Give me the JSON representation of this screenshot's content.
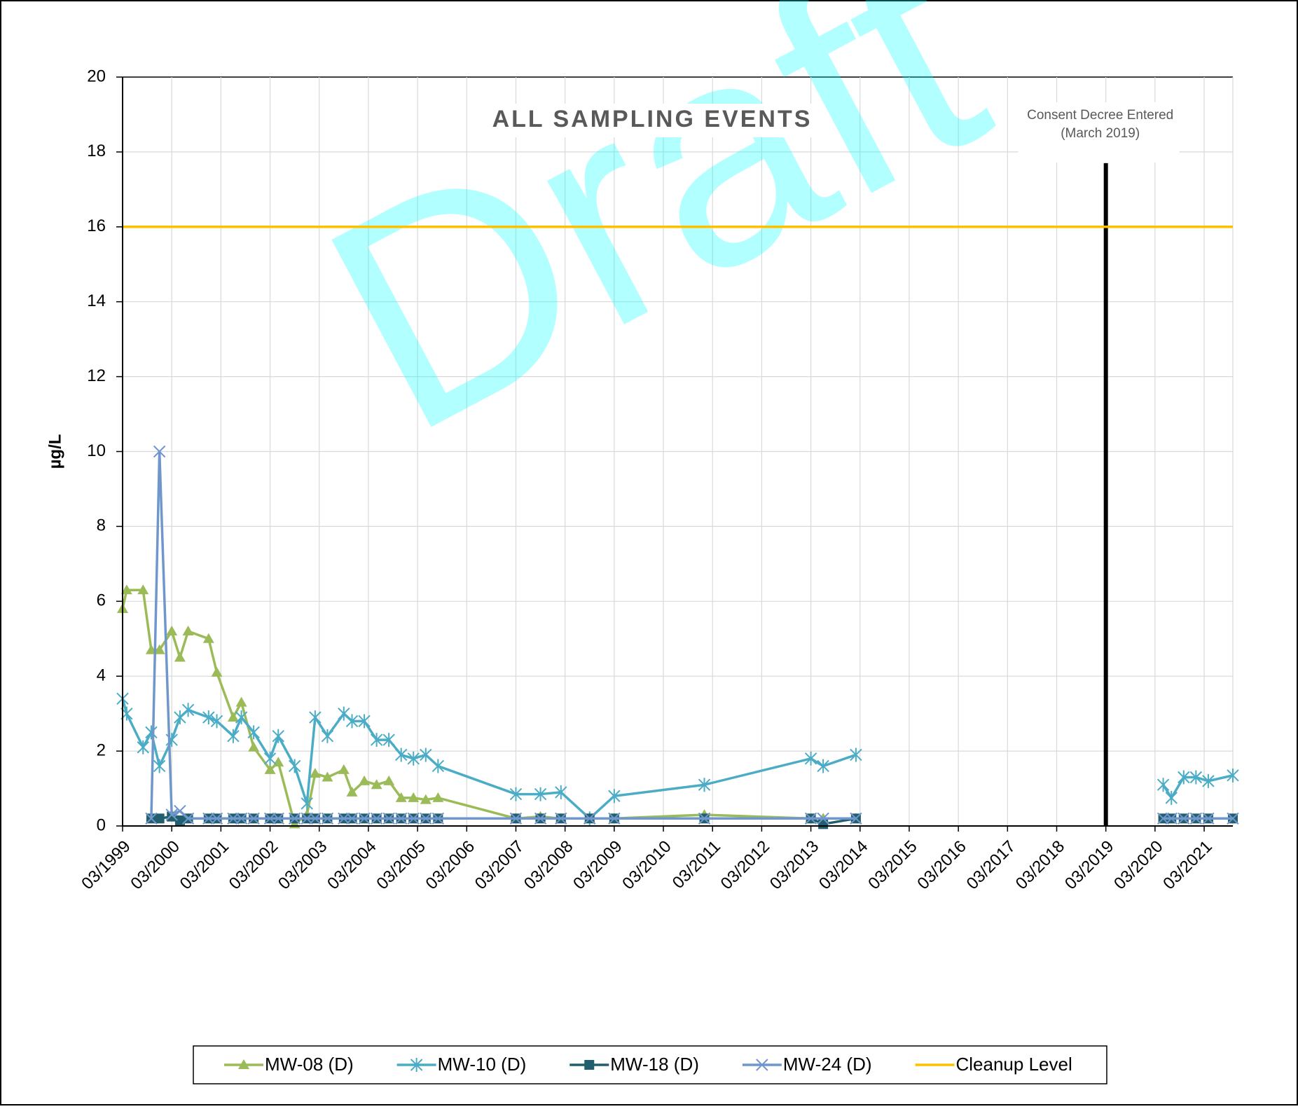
{
  "chart_data": {
    "type": "line",
    "title": "ALL SAMPLING EVENTS",
    "ylabel": "µg/L",
    "watermark": "Draft",
    "xlim": [
      "1999-03",
      "2021-10"
    ],
    "xticks": [
      {
        "value": "1999-03",
        "label": "03/1999"
      },
      {
        "value": "2000-03",
        "label": "03/2000"
      },
      {
        "value": "2001-03",
        "label": "03/2001"
      },
      {
        "value": "2002-03",
        "label": "03/2002"
      },
      {
        "value": "2003-03",
        "label": "03/2003"
      },
      {
        "value": "2004-03",
        "label": "03/2004"
      },
      {
        "value": "2005-03",
        "label": "03/2005"
      },
      {
        "value": "2006-03",
        "label": "03/2006"
      },
      {
        "value": "2007-03",
        "label": "03/2007"
      },
      {
        "value": "2008-03",
        "label": "03/2008"
      },
      {
        "value": "2009-03",
        "label": "03/2009"
      },
      {
        "value": "2010-03",
        "label": "03/2010"
      },
      {
        "value": "2011-03",
        "label": "03/2011"
      },
      {
        "value": "2012-03",
        "label": "03/2012"
      },
      {
        "value": "2013-03",
        "label": "03/2013"
      },
      {
        "value": "2014-03",
        "label": "03/2014"
      },
      {
        "value": "2015-03",
        "label": "03/2015"
      },
      {
        "value": "2016-03",
        "label": "03/2016"
      },
      {
        "value": "2017-03",
        "label": "03/2017"
      },
      {
        "value": "2018-03",
        "label": "03/2018"
      },
      {
        "value": "2019-03",
        "label": "03/2019"
      },
      {
        "value": "2020-03",
        "label": "03/2020"
      },
      {
        "value": "2021-03",
        "label": "03/2021"
      }
    ],
    "ylim": [
      0,
      20
    ],
    "yticks": [
      0,
      2,
      4,
      6,
      8,
      10,
      12,
      14,
      16,
      18,
      20
    ],
    "grid": true,
    "legend": "bottom",
    "annotation": {
      "x": "2019-03",
      "y": 17.7,
      "text": [
        "Consent Decree Entered",
        "(March 2019)"
      ]
    },
    "series": [
      {
        "name": "MW-08 (D)",
        "color": "#9bbb59",
        "marker": "triangle",
        "x": [
          "1999-03",
          "1999-04",
          "1999-08",
          "1999-10",
          "1999-12",
          "2000-03",
          "2000-05",
          "2000-07",
          "2000-12",
          "2001-02",
          "2001-06",
          "2001-08",
          "2001-11",
          "2002-03",
          "2002-05",
          "2002-09",
          "2002-12",
          "2003-02",
          "2003-05",
          "2003-09",
          "2003-11",
          "2004-02",
          "2004-05",
          "2004-08",
          "2004-11",
          "2005-02",
          "2005-05",
          "2005-08",
          "2007-03",
          "2007-09",
          "2008-02",
          "2008-09",
          "2009-03",
          "2011-01",
          "2013-03",
          "2013-06",
          "2014-02"
        ],
        "values": [
          5.8,
          6.3,
          6.3,
          4.7,
          4.7,
          5.2,
          4.5,
          5.2,
          5.0,
          4.1,
          2.9,
          3.3,
          2.1,
          1.5,
          1.7,
          0.05,
          0.3,
          1.4,
          1.3,
          1.5,
          0.9,
          1.2,
          1.1,
          1.2,
          0.75,
          0.75,
          0.7,
          0.75,
          0.2,
          0.25,
          0.2,
          0.2,
          0.2,
          0.3,
          0.2,
          0.2,
          0.2
        ]
      },
      {
        "name": "MW-10 (D)",
        "color": "#4bacc6",
        "marker": "star",
        "x": [
          "1999-03",
          "1999-04",
          "1999-08",
          "1999-10",
          "1999-12",
          "2000-03",
          "2000-05",
          "2000-07",
          "2000-12",
          "2001-02",
          "2001-06",
          "2001-08",
          "2001-11",
          "2002-03",
          "2002-05",
          "2002-09",
          "2002-12",
          "2003-02",
          "2003-05",
          "2003-09",
          "2003-11",
          "2004-02",
          "2004-05",
          "2004-08",
          "2004-11",
          "2005-02",
          "2005-05",
          "2005-08",
          "2007-03",
          "2007-09",
          "2008-02",
          "2008-09",
          "2009-03",
          "2011-01",
          "2013-03",
          "2013-06",
          "2014-02",
          null,
          "2020-05",
          "2020-07",
          "2020-10",
          "2021-01",
          "2021-04",
          "2021-10"
        ],
        "values": [
          3.4,
          3.0,
          2.1,
          2.5,
          1.6,
          2.3,
          2.9,
          3.1,
          2.9,
          2.8,
          2.4,
          2.9,
          2.5,
          1.8,
          2.4,
          1.6,
          0.6,
          2.9,
          2.4,
          3.0,
          2.8,
          2.8,
          2.3,
          2.3,
          1.9,
          1.8,
          1.9,
          1.6,
          0.85,
          0.85,
          0.9,
          0.2,
          0.8,
          1.1,
          1.8,
          1.6,
          1.9,
          null,
          1.1,
          0.75,
          1.3,
          1.3,
          1.2,
          1.35
        ]
      },
      {
        "name": "MW-18 (D)",
        "color": "#215f6e",
        "marker": "square",
        "x": [
          "1999-10",
          "1999-12",
          "2000-03",
          "2000-05",
          "2000-07",
          "2000-12",
          "2001-02",
          "2001-06",
          "2001-08",
          "2001-11",
          "2002-03",
          "2002-05",
          "2002-09",
          "2002-12",
          "2003-02",
          "2003-05",
          "2003-09",
          "2003-11",
          "2004-02",
          "2004-05",
          "2004-08",
          "2004-11",
          "2005-02",
          "2005-05",
          "2005-08",
          "2007-03",
          "2007-09",
          "2008-02",
          "2008-09",
          "2009-03",
          "2011-01",
          "2013-03",
          "2013-06",
          "2014-02",
          null,
          "2020-05",
          "2020-07",
          "2020-10",
          "2021-01",
          "2021-04",
          "2021-10"
        ],
        "values": [
          0.2,
          0.2,
          0.25,
          0.15,
          0.2,
          0.2,
          0.2,
          0.2,
          0.2,
          0.2,
          0.2,
          0.2,
          0.2,
          0.2,
          0.2,
          0.2,
          0.2,
          0.2,
          0.2,
          0.2,
          0.2,
          0.2,
          0.2,
          0.2,
          0.2,
          0.2,
          0.2,
          0.2,
          0.2,
          0.2,
          0.2,
          0.2,
          0.05,
          0.2,
          null,
          0.2,
          0.2,
          0.2,
          0.2,
          0.2,
          0.2
        ]
      },
      {
        "name": "MW-24 (D)",
        "color": "#6f97cc",
        "marker": "x",
        "x": [
          "1999-10",
          "1999-12",
          "2000-03",
          "2000-05",
          "2000-07",
          "2000-12",
          "2001-02",
          "2001-06",
          "2001-08",
          "2001-11",
          "2002-03",
          "2002-05",
          "2002-09",
          "2002-12",
          "2003-02",
          "2003-05",
          "2003-09",
          "2003-11",
          "2004-02",
          "2004-05",
          "2004-08",
          "2004-11",
          "2005-02",
          "2005-05",
          "2005-08",
          "2007-03",
          "2007-09",
          "2008-02",
          "2008-09",
          "2009-03",
          "2011-01",
          "2013-03",
          "2013-06",
          "2014-02",
          null,
          "2020-05",
          "2020-07",
          "2020-10",
          "2021-01",
          "2021-04",
          "2021-10"
        ],
        "values": [
          0.2,
          10,
          0.3,
          0.4,
          0.2,
          0.2,
          0.2,
          0.2,
          0.2,
          0.2,
          0.2,
          0.2,
          0.2,
          0.2,
          0.2,
          0.2,
          0.2,
          0.2,
          0.2,
          0.2,
          0.2,
          0.2,
          0.2,
          0.2,
          0.2,
          0.2,
          0.2,
          0.2,
          0.2,
          0.2,
          0.2,
          0.2,
          0.2,
          0.2,
          null,
          0.2,
          0.2,
          0.2,
          0.2,
          0.2,
          0.2
        ]
      },
      {
        "name": "Cleanup Level",
        "color": "#ffc000",
        "marker": "none",
        "x": [
          "1999-03",
          "2021-10"
        ],
        "values": [
          16,
          16
        ]
      }
    ]
  }
}
